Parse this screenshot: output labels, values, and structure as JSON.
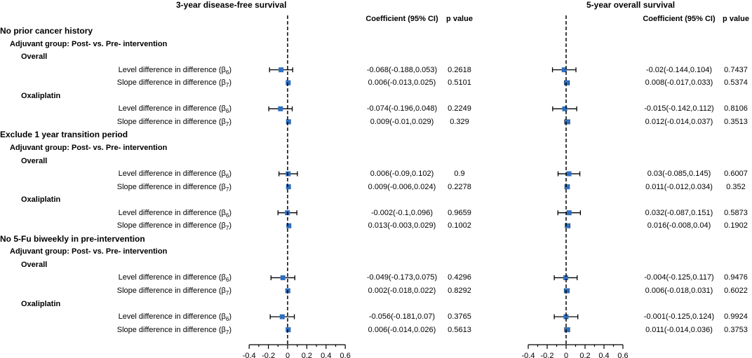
{
  "headers": {
    "left_title": "3-year disease-free survival",
    "right_title": "5-year overall survival",
    "coef_label": "Coefficient (95% CI)",
    "p_label": "p value"
  },
  "rows": [
    {
      "kind": "section",
      "text": "No prior cancer history"
    },
    {
      "kind": "group",
      "text": "Adjuvant group: Post- vs. Pre- intervention"
    },
    {
      "kind": "subgroup",
      "text": "Overall"
    },
    {
      "kind": "metric",
      "label": "Level difference in difference (β",
      "sub": "6",
      "end": ")",
      "dfs": {
        "est": -0.068,
        "lo": -0.188,
        "hi": 0.053,
        "ci": "-0.068(-0.188,0.053)",
        "p": "0.2618"
      },
      "os": {
        "est": -0.02,
        "lo": -0.144,
        "hi": 0.104,
        "ci": "-0.02(-0.144,0.104)",
        "p": "0.7437"
      }
    },
    {
      "kind": "metric",
      "label": "Slope difference in difference (β",
      "sub": "7",
      "end": ")",
      "dfs": {
        "est": 0.006,
        "lo": -0.013,
        "hi": 0.025,
        "ci": "0.006(-0.013,0.025)",
        "p": "0.5101"
      },
      "os": {
        "est": 0.008,
        "lo": -0.017,
        "hi": 0.033,
        "ci": "0.008(-0.017,0.033)",
        "p": "0.5374"
      }
    },
    {
      "kind": "subgroup",
      "text": "Oxaliplatin"
    },
    {
      "kind": "metric",
      "label": "Level difference in difference (β",
      "sub": "6",
      "end": ")",
      "dfs": {
        "est": -0.074,
        "lo": -0.196,
        "hi": 0.048,
        "ci": "-0.074(-0.196,0.048)",
        "p": "0.2249"
      },
      "os": {
        "est": -0.015,
        "lo": -0.142,
        "hi": 0.112,
        "ci": "-0.015(-0.142,0.112)",
        "p": "0.8106"
      }
    },
    {
      "kind": "metric",
      "label": "Slope difference in difference (β",
      "sub": "7",
      "end": ")",
      "dfs": {
        "est": 0.009,
        "lo": -0.01,
        "hi": 0.029,
        "ci": "0.009(-0.01,0.029)",
        "p": "0.329"
      },
      "os": {
        "est": 0.012,
        "lo": -0.014,
        "hi": 0.037,
        "ci": "0.012(-0.014,0.037)",
        "p": "0.3513"
      }
    },
    {
      "kind": "section",
      "text": "Exclude 1 year transition period"
    },
    {
      "kind": "group",
      "text": "Adjuvant group: Post- vs. Pre- intervention"
    },
    {
      "kind": "subgroup",
      "text": "Overall"
    },
    {
      "kind": "metric",
      "label": "Level difference in difference (β",
      "sub": "6",
      "end": ")",
      "dfs": {
        "est": 0.006,
        "lo": -0.09,
        "hi": 0.102,
        "ci": "0.006(-0.09,0.102)",
        "p": "0.9"
      },
      "os": {
        "est": 0.03,
        "lo": -0.085,
        "hi": 0.145,
        "ci": "0.03(-0.085,0.145)",
        "p": "0.6007"
      }
    },
    {
      "kind": "metric",
      "label": "Slope difference in difference (β",
      "sub": "7",
      "end": ")",
      "dfs": {
        "est": 0.009,
        "lo": -0.006,
        "hi": 0.024,
        "ci": "0.009(-0.006,0.024)",
        "p": "0.2278"
      },
      "os": {
        "est": 0.011,
        "lo": -0.012,
        "hi": 0.034,
        "ci": "0.011(-0.012,0.034)",
        "p": "0.352"
      }
    },
    {
      "kind": "subgroup",
      "text": "Oxaliplatin"
    },
    {
      "kind": "metric",
      "label": "Level difference in difference (β",
      "sub": "6",
      "end": ")",
      "dfs": {
        "est": -0.002,
        "lo": -0.1,
        "hi": 0.096,
        "ci": "-0.002(-0.1,0.096)",
        "p": "0.9659"
      },
      "os": {
        "est": 0.032,
        "lo": -0.087,
        "hi": 0.151,
        "ci": "0.032(-0.087,0.151)",
        "p": "0.5873"
      }
    },
    {
      "kind": "metric",
      "label": "Slope difference in difference (β",
      "sub": "7",
      "end": ")",
      "dfs": {
        "est": 0.013,
        "lo": -0.003,
        "hi": 0.029,
        "ci": "0.013(-0.003,0.029)",
        "p": "0.1002"
      },
      "os": {
        "est": 0.016,
        "lo": -0.008,
        "hi": 0.04,
        "ci": "0.016(-0.008,0.04)",
        "p": "0.1902"
      }
    },
    {
      "kind": "section",
      "text": "No 5-Fu biweekly in pre-intervention"
    },
    {
      "kind": "group",
      "text": "Adjuvant group: Post- vs. Pre- intervention"
    },
    {
      "kind": "subgroup",
      "text": "Overall"
    },
    {
      "kind": "metric",
      "label": "Level difference in difference (β",
      "sub": "6",
      "end": ")",
      "dfs": {
        "est": -0.049,
        "lo": -0.173,
        "hi": 0.075,
        "ci": "-0.049(-0.173,0.075)",
        "p": "0.4296"
      },
      "os": {
        "est": -0.004,
        "lo": -0.125,
        "hi": 0.117,
        "ci": "-0.004(-0.125,0.117)",
        "p": "0.9476"
      }
    },
    {
      "kind": "metric",
      "label": "Slope difference in difference (β",
      "sub": "7",
      "end": ")",
      "dfs": {
        "est": 0.002,
        "lo": -0.018,
        "hi": 0.022,
        "ci": "0.002(-0.018,0.022)",
        "p": "0.8292"
      },
      "os": {
        "est": 0.006,
        "lo": -0.018,
        "hi": 0.031,
        "ci": "0.006(-0.018,0.031)",
        "p": "0.6022"
      }
    },
    {
      "kind": "subgroup",
      "text": "Oxaliplatin"
    },
    {
      "kind": "metric",
      "label": "Level difference in difference (β",
      "sub": "6",
      "end": ")",
      "dfs": {
        "est": -0.056,
        "lo": -0.181,
        "hi": 0.07,
        "ci": "-0.056(-0.181,0.07)",
        "p": "0.3765"
      },
      "os": {
        "est": -0.001,
        "lo": -0.125,
        "hi": 0.124,
        "ci": "-0.001(-0.125,0.124)",
        "p": "0.9924"
      }
    },
    {
      "kind": "metric",
      "label": "Slope difference in difference (β",
      "sub": "7",
      "end": ")",
      "dfs": {
        "est": 0.006,
        "lo": -0.014,
        "hi": 0.026,
        "ci": "0.006(-0.014,0.026)",
        "p": "0.5613"
      },
      "os": {
        "est": 0.011,
        "lo": -0.014,
        "hi": 0.036,
        "ci": "0.011(-0.014,0.036)",
        "p": "0.3753"
      }
    }
  ],
  "chart_data": {
    "type": "forest",
    "panels": [
      "3-year disease-free survival",
      "5-year overall survival"
    ],
    "xlim": [
      -0.4,
      0.6
    ],
    "xticks": [
      -0.4,
      -0.2,
      0,
      0.2,
      0.4,
      0.6
    ],
    "xtick_labels": [
      "-0.4",
      "-0.2",
      "0",
      "0.2",
      "0.4",
      "0.6"
    ],
    "reference_line": 0,
    "marker_color": "#2f6fbf"
  }
}
